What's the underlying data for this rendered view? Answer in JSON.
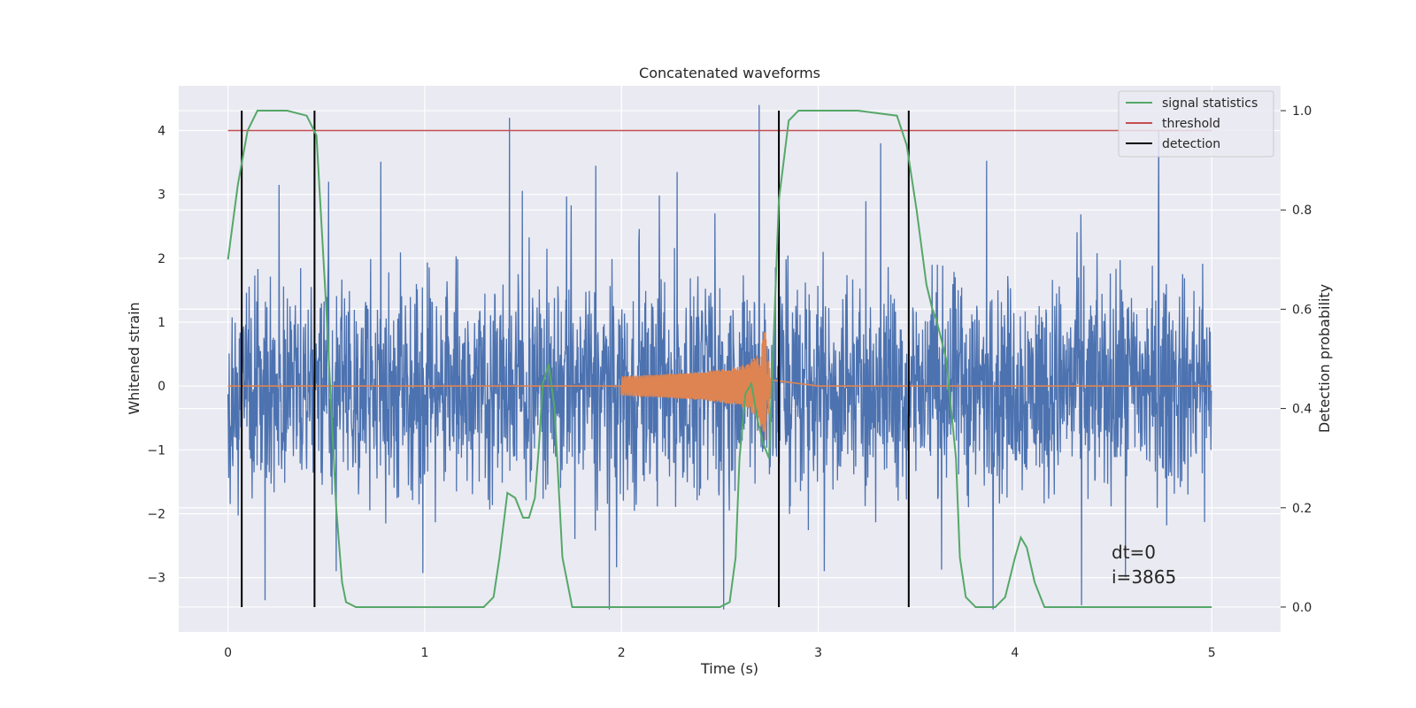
{
  "chart_data": {
    "type": "line",
    "title": "Concatenated waveforms",
    "xlabel": "Time (s)",
    "ylabel_left": "Whitened strain",
    "ylabel_right": "Detection probability",
    "xlim": [
      -0.25,
      5.35
    ],
    "ylim_left": [
      -3.85,
      4.7
    ],
    "ylim_right": [
      -0.05,
      1.05
    ],
    "x_ticks": [
      0,
      1,
      2,
      3,
      4,
      5
    ],
    "y_ticks_left": [
      -3,
      -2,
      -1,
      0,
      1,
      2,
      3,
      4
    ],
    "y_ticks_right": [
      0.0,
      0.2,
      0.4,
      0.6,
      0.8,
      1.0
    ],
    "x_tick_labels": [
      "0",
      "1",
      "2",
      "3",
      "4",
      "5"
    ],
    "y_tick_labels_left": [
      "−3",
      "−2",
      "−1",
      "0",
      "1",
      "2",
      "3",
      "4"
    ],
    "y_tick_labels_right": [
      "0.0",
      "0.2",
      "0.4",
      "0.6",
      "0.8",
      "1.0"
    ],
    "grid": true,
    "legend_position": "top-right",
    "legend": [
      "signal statistics",
      "threshold",
      "detection"
    ],
    "annotation": [
      "dt=0",
      "i=3865"
    ],
    "series": [
      {
        "name": "",
        "kind": "noisy whitened strain",
        "color": "#4c72b0",
        "x_range": [
          0,
          5
        ],
        "envelope": [
          -3.5,
          4.4
        ],
        "spikes": [
          [
            1.43,
            4.2
          ],
          [
            2.7,
            4.4
          ],
          [
            4.73,
            4.0
          ],
          [
            0.26,
            3.15
          ],
          [
            1.87,
            3.45
          ],
          [
            2.52,
            -3.5
          ],
          [
            0.55,
            -2.9
          ],
          [
            3.03,
            -2.9
          ]
        ]
      },
      {
        "name": "",
        "kind": "template waveform",
        "color": "#dd8452",
        "x": [
          0,
          2.0,
          2.2,
          2.4,
          2.6,
          2.7,
          2.73,
          2.76,
          3.0,
          5.0
        ],
        "amplitude": [
          0,
          0.15,
          0.18,
          0.22,
          0.3,
          0.5,
          0.92,
          0.1,
          0.0,
          0
        ]
      },
      {
        "name": "signal statistics",
        "color": "#55a868",
        "axis": "right",
        "x": [
          0,
          0.05,
          0.1,
          0.15,
          0.2,
          0.3,
          0.4,
          0.45,
          0.5,
          0.55,
          0.58,
          0.6,
          0.65,
          1.0,
          1.3,
          1.35,
          1.38,
          1.42,
          1.46,
          1.5,
          1.53,
          1.56,
          1.58,
          1.6,
          1.63,
          1.66,
          1.7,
          1.75,
          2.0,
          2.3,
          2.5,
          2.55,
          2.58,
          2.6,
          2.63,
          2.66,
          2.69,
          2.72,
          2.75,
          2.8,
          2.85,
          2.9,
          3.0,
          3.2,
          3.4,
          3.45,
          3.5,
          3.55,
          3.58,
          3.6,
          3.65,
          3.7,
          3.72,
          3.75,
          3.8,
          3.9,
          3.95,
          4.0,
          4.03,
          4.06,
          4.1,
          4.15,
          4.2,
          4.5,
          5.0
        ],
        "y": [
          0.7,
          0.85,
          0.96,
          1.0,
          1.0,
          1.0,
          0.99,
          0.95,
          0.6,
          0.2,
          0.05,
          0.01,
          0.0,
          0.0,
          0.0,
          0.02,
          0.1,
          0.23,
          0.22,
          0.18,
          0.18,
          0.22,
          0.32,
          0.45,
          0.49,
          0.4,
          0.1,
          0.0,
          0.0,
          0.0,
          0.0,
          0.01,
          0.1,
          0.3,
          0.43,
          0.45,
          0.38,
          0.33,
          0.3,
          0.82,
          0.98,
          1.0,
          1.0,
          1.0,
          0.99,
          0.93,
          0.8,
          0.65,
          0.6,
          0.58,
          0.5,
          0.3,
          0.1,
          0.02,
          0.0,
          0.0,
          0.02,
          0.1,
          0.14,
          0.12,
          0.05,
          0.0,
          0.0,
          0.0,
          0.0
        ]
      },
      {
        "name": "threshold",
        "color": "#c44e52",
        "axis": "left",
        "x": [
          0,
          5
        ],
        "y": [
          4,
          4
        ]
      }
    ],
    "detections": {
      "name": "detection",
      "color": "#000000",
      "x": [
        0.07,
        0.44,
        2.8,
        3.46
      ]
    }
  }
}
